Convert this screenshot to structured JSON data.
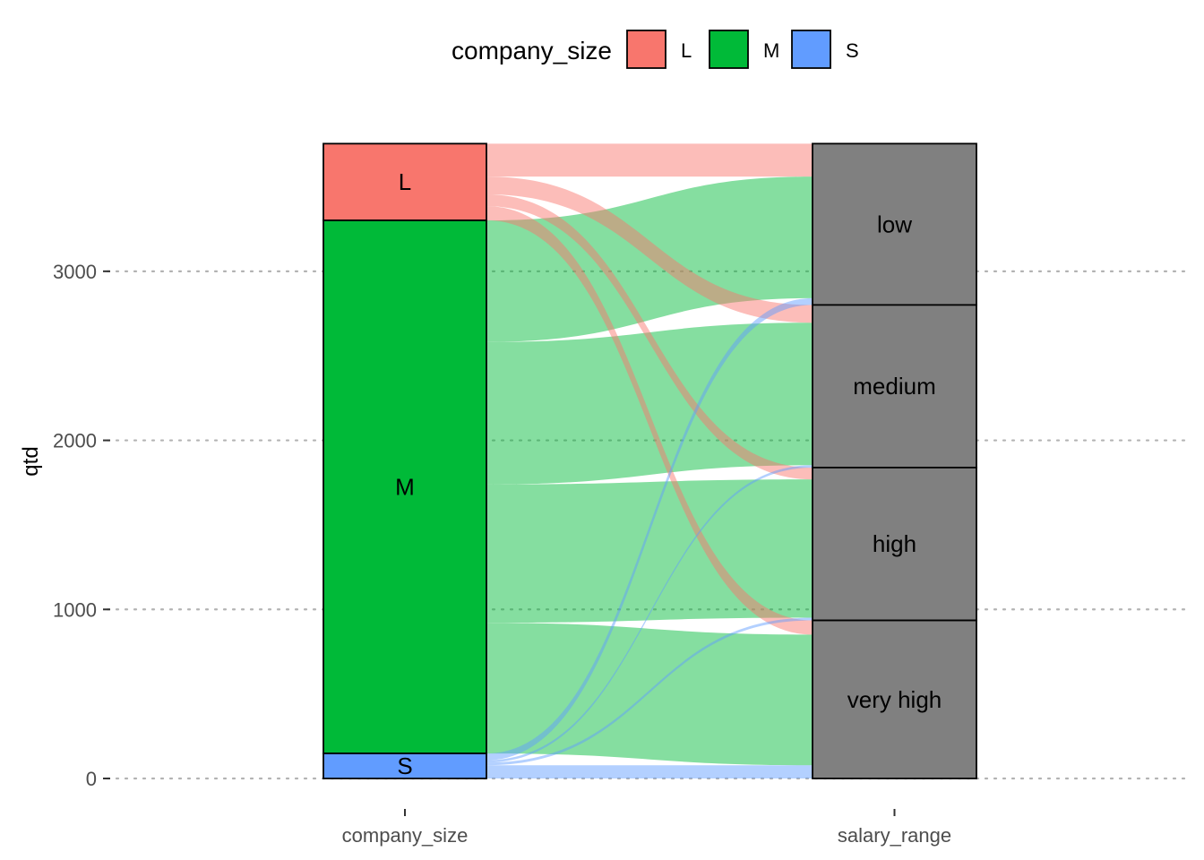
{
  "chart_data": {
    "type": "alluvial",
    "ylabel": "qtd",
    "axes": [
      "company_size",
      "salary_range"
    ],
    "yticks": [
      0,
      1000,
      2000,
      3000
    ],
    "ylim": [
      0,
      3755
    ],
    "grid": "horizontal-dotted",
    "legend": {
      "title": "company_size",
      "position": "top",
      "entries": [
        {
          "name": "L",
          "color": "#F8766D"
        },
        {
          "name": "M",
          "color": "#00BA38"
        },
        {
          "name": "S",
          "color": "#619CFF"
        }
      ]
    },
    "strata": {
      "company_size": [
        {
          "name": "L",
          "value": 454,
          "color": "#F8766D"
        },
        {
          "name": "M",
          "value": 3153,
          "color": "#00BA38"
        },
        {
          "name": "S",
          "value": 148,
          "color": "#619CFF"
        }
      ],
      "salary_range": [
        {
          "name": "low",
          "value": 954,
          "color": "#808080"
        },
        {
          "name": "medium",
          "value": 962,
          "color": "#808080"
        },
        {
          "name": "high",
          "value": 904,
          "color": "#808080"
        },
        {
          "name": "very high",
          "value": 935,
          "color": "#808080"
        }
      ]
    },
    "flows": [
      {
        "from": "L",
        "to": "low",
        "value": 195
      },
      {
        "from": "L",
        "to": "medium",
        "value": 105
      },
      {
        "from": "L",
        "to": "high",
        "value": 70
      },
      {
        "from": "L",
        "to": "very high",
        "value": 84
      },
      {
        "from": "M",
        "to": "low",
        "value": 719
      },
      {
        "from": "M",
        "to": "medium",
        "value": 843
      },
      {
        "from": "M",
        "to": "high",
        "value": 818
      },
      {
        "from": "M",
        "to": "very high",
        "value": 773
      },
      {
        "from": "S",
        "to": "low",
        "value": 40
      },
      {
        "from": "S",
        "to": "medium",
        "value": 14
      },
      {
        "from": "S",
        "to": "high",
        "value": 16
      },
      {
        "from": "S",
        "to": "very high",
        "value": 78
      }
    ]
  }
}
